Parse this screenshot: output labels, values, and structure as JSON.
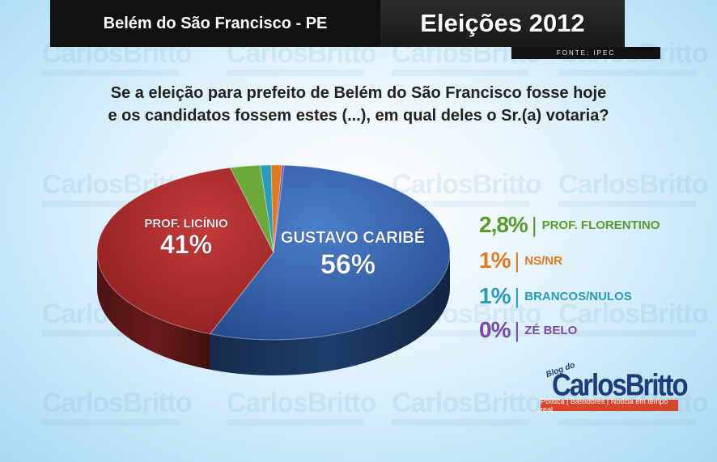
{
  "header": {
    "location": "Belém do São Francisco - PE",
    "title": "Eleições 2012",
    "source": "FONTE: IPEC"
  },
  "question": {
    "line1": "Se a eleição para prefeito de Belém do São Francisco fosse hoje",
    "line2": "e os candidatos fossem estes (...), em qual deles o Sr.(a) votaria?"
  },
  "chart_data": {
    "type": "pie",
    "title": "",
    "slices": [
      {
        "label": "GUSTAVO CARIBÉ",
        "value": 56,
        "display": "56%",
        "color": "#2f5fa8"
      },
      {
        "label": "PROF. LICÍNIO",
        "value": 41,
        "display": "41%",
        "color": "#a82a2a"
      },
      {
        "label": "PROF. FLORENTINO",
        "value": 2.8,
        "display": "2,8%",
        "color": "#6aa83a"
      },
      {
        "label": "NS/NR",
        "value": 1,
        "display": "1%",
        "color": "#e07a22"
      },
      {
        "label": "BRANCOS/NULOS",
        "value": 1,
        "display": "1%",
        "color": "#2a9bb8"
      },
      {
        "label": "ZÉ BELO",
        "value": 0,
        "display": "0%",
        "color": "#7b4aa0"
      }
    ],
    "legend": [
      {
        "value": "2,8%",
        "sep": "|",
        "label": "PROF. FLORENTINO",
        "color": "#5c9a2e"
      },
      {
        "value": "1%",
        "sep": "|",
        "label": "NS/NR",
        "color": "#e07a22"
      },
      {
        "value": "1%",
        "sep": "|",
        "label": "BRANCOS/NULOS",
        "color": "#2a9bb8"
      },
      {
        "value": "0%",
        "sep": "|",
        "label": "ZÉ BELO",
        "color": "#7b4aa0"
      }
    ]
  },
  "watermark": {
    "big": "CarlosBritto"
  },
  "logo": {
    "blog": "Blog do",
    "name": "CarlosBritto",
    "tagline": "Política | Bastidores | Notícia em tempo real"
  }
}
